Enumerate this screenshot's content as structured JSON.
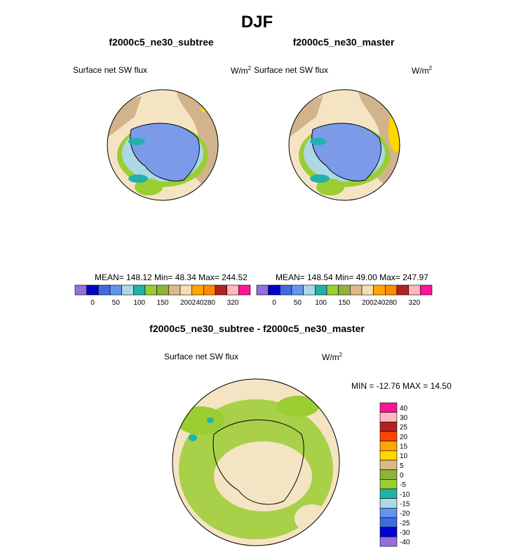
{
  "season": "DJF",
  "panels": {
    "left": {
      "case": "f2000c5_ne30_subtree",
      "variable": "Surface net SW flux",
      "units_base": "W/m",
      "units_exp": "2",
      "stats": "MEAN= 148.12  Min=  48.34  Max= 244.52",
      "colorbar_labels": [
        "0",
        "50",
        "100",
        "150",
        "200",
        "240",
        "280",
        "320"
      ]
    },
    "right": {
      "case": "f2000c5_ne30_master",
      "variable": "Surface net SW flux",
      "units_base": "W/m",
      "units_exp": "2",
      "stats": "MEAN= 148.54  Min=  49.00  Max= 247.97",
      "colorbar_labels": [
        "0",
        "50",
        "100",
        "150",
        "200",
        "240",
        "280",
        "320"
      ]
    },
    "diff": {
      "case": "f2000c5_ne30_subtree - f2000c5_ne30_master",
      "variable": "Surface net SW flux",
      "units_base": "W/m",
      "units_exp": "2",
      "stats": "MIN = -12.76 MAX =  14.50",
      "colorbar_labels": [
        "40",
        "30",
        "25",
        "20",
        "15",
        "10",
        "5",
        "0",
        "-5",
        "-10",
        "-15",
        "-20",
        "-25",
        "-30",
        "-40"
      ]
    }
  },
  "colors": {
    "field_scale": [
      "#9370db",
      "#0000cd",
      "#4169e1",
      "#6495ed",
      "#add8e6",
      "#20b2aa",
      "#9acd32",
      "#8db33a",
      "#deb887",
      "#f5deb3",
      "#ffa500",
      "#ff8c00",
      "#b22222",
      "#ffb6c1",
      "#ff1493"
    ],
    "diff_scale": [
      "#ff1493",
      "#ffb6c1",
      "#b22222",
      "#ff4500",
      "#ffa500",
      "#ffd700",
      "#deb887",
      "#8db33a",
      "#9acd32",
      "#20b2aa",
      "#add8e6",
      "#6495ed",
      "#4169e1",
      "#0000cd",
      "#9370db"
    ],
    "ocean_bg": "#f5e4c3",
    "ice": "#7b9be8",
    "land_outer": "#d2b48c"
  }
}
